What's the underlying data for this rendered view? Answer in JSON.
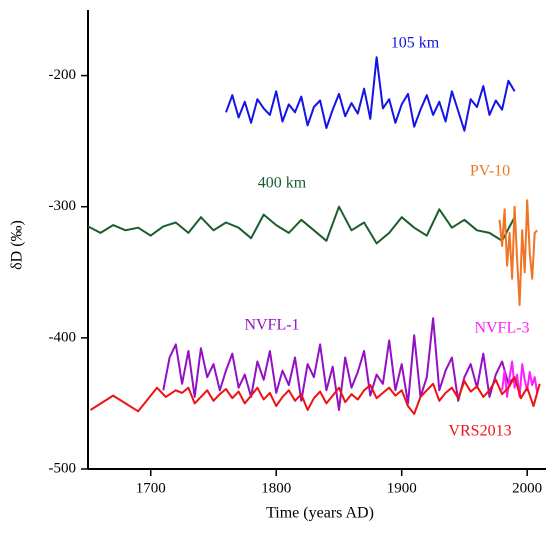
{
  "chart_data": {
    "type": "line",
    "x_label": "Time (years AD)",
    "y_label": "δD (‰)",
    "xlim": [
      1650,
      2015
    ],
    "ylim": [
      -500,
      -150
    ],
    "xticks": [
      1700,
      1800,
      1900,
      2000
    ],
    "yticks": [
      -500,
      -400,
      -300,
      -200
    ],
    "series": [
      {
        "name": "105 km",
        "color": "#1414e6",
        "x": [
          1760,
          1765,
          1770,
          1775,
          1780,
          1785,
          1790,
          1795,
          1800,
          1805,
          1810,
          1815,
          1820,
          1825,
          1830,
          1835,
          1840,
          1845,
          1850,
          1855,
          1860,
          1865,
          1870,
          1875,
          1880,
          1885,
          1890,
          1895,
          1900,
          1905,
          1910,
          1915,
          1920,
          1925,
          1930,
          1935,
          1940,
          1945,
          1950,
          1955,
          1960,
          1965,
          1970,
          1975,
          1980,
          1985,
          1990
        ],
        "values": [
          -228,
          -215,
          -232,
          -220,
          -236,
          -218,
          -225,
          -230,
          -212,
          -235,
          -222,
          -228,
          -216,
          -238,
          -224,
          -219,
          -240,
          -226,
          -214,
          -231,
          -221,
          -229,
          -210,
          -233,
          -186,
          -225,
          -218,
          -236,
          -222,
          -214,
          -239,
          -226,
          -215,
          -230,
          -220,
          -235,
          -212,
          -227,
          -242,
          -218,
          -224,
          -208,
          -230,
          -219,
          -226,
          -204,
          -212
        ]
      },
      {
        "name": "400 km",
        "color": "#1b5e2c",
        "x": [
          1650,
          1660,
          1670,
          1680,
          1690,
          1700,
          1710,
          1720,
          1730,
          1740,
          1750,
          1760,
          1770,
          1780,
          1790,
          1800,
          1810,
          1820,
          1830,
          1840,
          1850,
          1860,
          1870,
          1880,
          1890,
          1900,
          1910,
          1920,
          1930,
          1940,
          1950,
          1960,
          1970,
          1980,
          1990
        ],
        "values": [
          -315,
          -320,
          -314,
          -318,
          -316,
          -322,
          -315,
          -312,
          -320,
          -308,
          -318,
          -312,
          -316,
          -324,
          -306,
          -314,
          -320,
          -310,
          -318,
          -326,
          -300,
          -318,
          -312,
          -328,
          -320,
          -308,
          -316,
          -322,
          -302,
          -316,
          -310,
          -318,
          -320,
          -326,
          -308
        ]
      },
      {
        "name": "PV-10",
        "color": "#f07424",
        "x": [
          1978,
          1980,
          1982,
          1984,
          1986,
          1988,
          1990,
          1992,
          1994,
          1996,
          1998,
          2000,
          2002,
          2004,
          2006,
          2008
        ],
        "values": [
          -310,
          -330,
          -302,
          -345,
          -320,
          -355,
          -300,
          -340,
          -375,
          -318,
          -350,
          -295,
          -335,
          -355,
          -320,
          -318
        ]
      },
      {
        "name": "NVFL-1",
        "color": "#9410c4",
        "x": [
          1710,
          1715,
          1720,
          1725,
          1730,
          1735,
          1740,
          1745,
          1750,
          1755,
          1760,
          1765,
          1770,
          1775,
          1780,
          1785,
          1790,
          1795,
          1800,
          1805,
          1810,
          1815,
          1820,
          1825,
          1830,
          1835,
          1840,
          1845,
          1850,
          1855,
          1860,
          1865,
          1870,
          1875,
          1880,
          1885,
          1890,
          1895,
          1900,
          1905,
          1910,
          1915,
          1920,
          1925,
          1930,
          1935,
          1940,
          1945,
          1950,
          1955,
          1960,
          1965,
          1970,
          1975,
          1980,
          1985,
          1990
        ],
        "values": [
          -440,
          -415,
          -405,
          -435,
          -410,
          -445,
          -408,
          -430,
          -420,
          -440,
          -425,
          -412,
          -438,
          -428,
          -445,
          -418,
          -432,
          -410,
          -442,
          -425,
          -436,
          -415,
          -448,
          -420,
          -430,
          -405,
          -440,
          -422,
          -455,
          -415,
          -438,
          -426,
          -410,
          -444,
          -428,
          -435,
          -402,
          -440,
          -420,
          -450,
          -398,
          -445,
          -430,
          -385,
          -440,
          -425,
          -415,
          -448,
          -430,
          -420,
          -438,
          -412,
          -445,
          -428,
          -418,
          -435,
          -430
        ]
      },
      {
        "name": "NVFL-3",
        "color": "#ff1eff",
        "x": [
          1980,
          1982,
          1984,
          1986,
          1988,
          1990,
          1992,
          1994,
          1996,
          1998,
          2000,
          2002,
          2004,
          2006,
          2008
        ],
        "values": [
          -440,
          -425,
          -445,
          -430,
          -418,
          -438,
          -428,
          -445,
          -420,
          -432,
          -440,
          -426,
          -436,
          -430,
          -442
        ]
      },
      {
        "name": "VRS2013",
        "color": "#ee1212",
        "x": [
          1652,
          1670,
          1690,
          1705,
          1712,
          1720,
          1725,
          1730,
          1735,
          1740,
          1745,
          1750,
          1755,
          1760,
          1765,
          1770,
          1775,
          1780,
          1785,
          1790,
          1795,
          1800,
          1805,
          1810,
          1815,
          1820,
          1825,
          1830,
          1835,
          1840,
          1845,
          1850,
          1855,
          1860,
          1865,
          1870,
          1875,
          1880,
          1885,
          1890,
          1895,
          1900,
          1905,
          1910,
          1915,
          1920,
          1925,
          1930,
          1935,
          1940,
          1945,
          1950,
          1955,
          1960,
          1965,
          1970,
          1975,
          1980,
          1985,
          1990,
          1995,
          2000,
          2005,
          2010
        ],
        "values": [
          -455,
          -444,
          -456,
          -438,
          -445,
          -440,
          -442,
          -438,
          -450,
          -445,
          -440,
          -448,
          -443,
          -439,
          -446,
          -441,
          -450,
          -444,
          -438,
          -447,
          -442,
          -452,
          -445,
          -440,
          -448,
          -443,
          -455,
          -446,
          -441,
          -450,
          -444,
          -438,
          -449,
          -443,
          -447,
          -440,
          -436,
          -446,
          -442,
          -438,
          -444,
          -440,
          -452,
          -458,
          -445,
          -440,
          -435,
          -448,
          -442,
          -438,
          -446,
          -433,
          -441,
          -437,
          -445,
          -440,
          -432,
          -443,
          -438,
          -430,
          -446,
          -438,
          -452,
          -435
        ]
      }
    ]
  }
}
